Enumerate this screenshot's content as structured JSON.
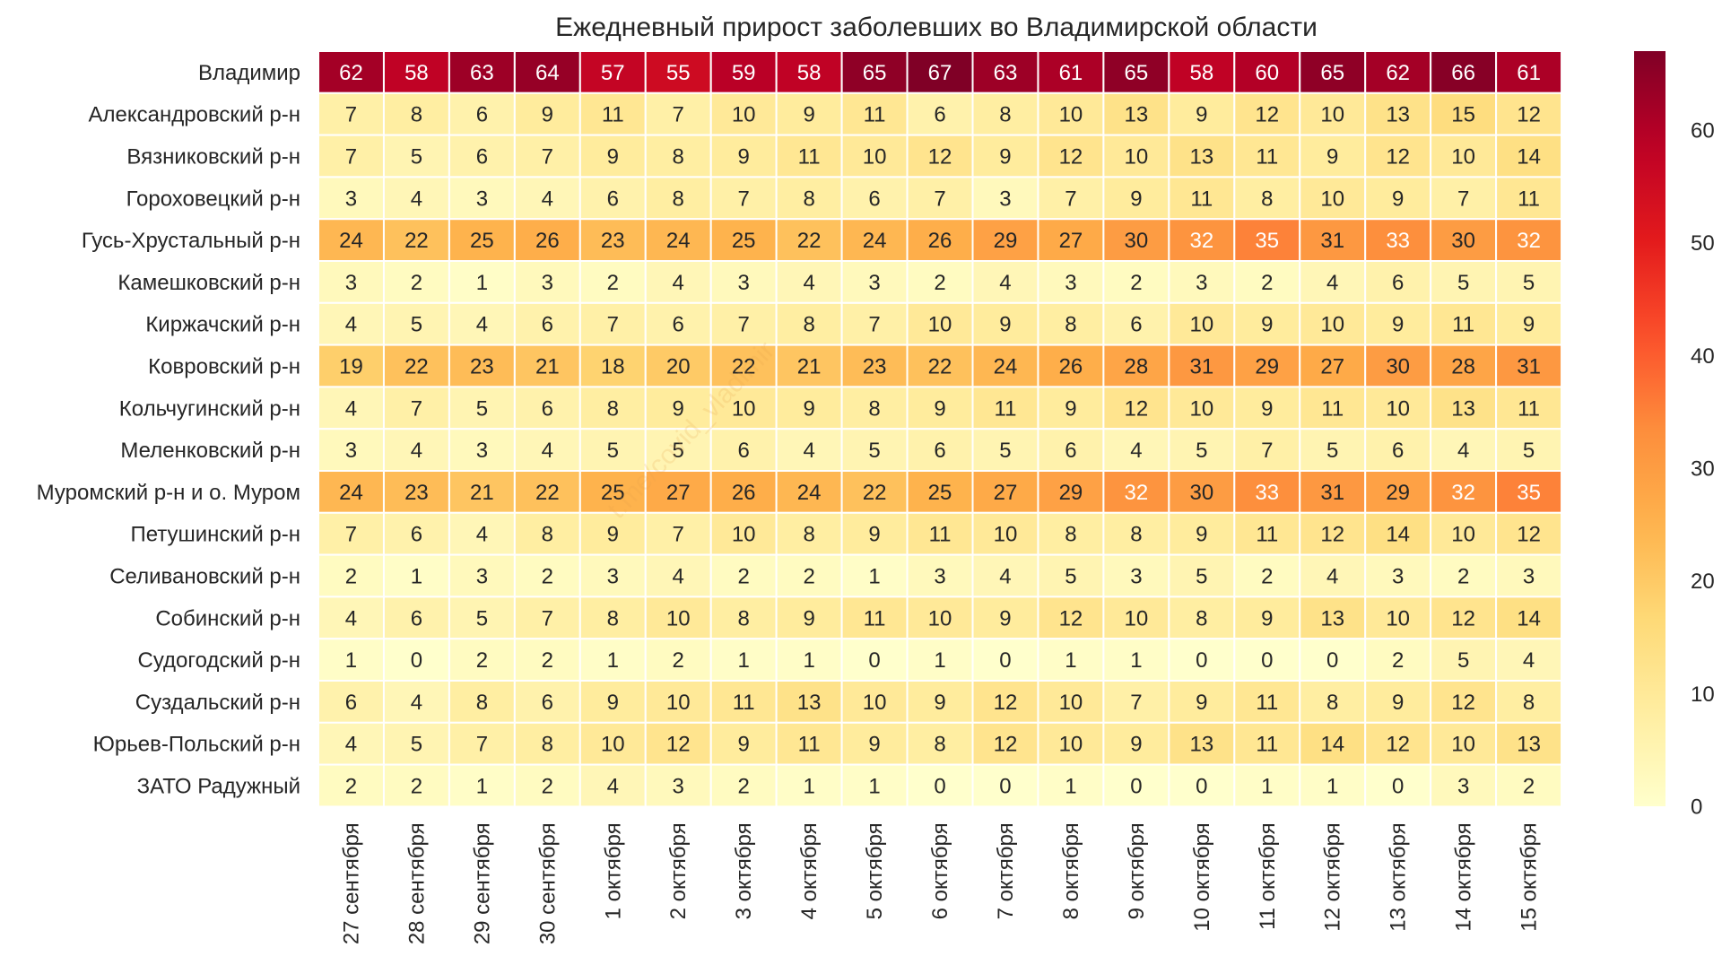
{
  "chart_data": {
    "type": "heatmap",
    "title": "Ежедневный прирост заболевших во Владимирской области",
    "watermark": "t.me/covid_vladimir",
    "colormap": "YlOrRd",
    "vmin": 0,
    "vmax": 67,
    "colorbar_ticks": [
      0,
      10,
      20,
      30,
      40,
      50,
      60
    ],
    "columns": [
      "27 сентября",
      "28 сентября",
      "29 сентября",
      "30 сентября",
      "1 октября",
      "2 октября",
      "3 октября",
      "4 октября",
      "5 октября",
      "6 октября",
      "7 октября",
      "8 октября",
      "9 октября",
      "10 октября",
      "11 октября",
      "12 октября",
      "13 октября",
      "14 октября",
      "15 октября"
    ],
    "rows": [
      "Владимир",
      "Александровский р-н",
      "Вязниковский р-н",
      "Гороховецкий р-н",
      "Гусь-Хрустальный р-н",
      "Камешковский р-н",
      "Киржачский р-н",
      "Ковровский р-н",
      "Кольчугинский р-н",
      "Меленковский р-н",
      "Муромский р-н и о. Муром",
      "Петушинский р-н",
      "Селивановский р-н",
      "Собинский р-н",
      "Судогодский р-н",
      "Суздальский р-н",
      "Юрьев-Польский р-н",
      "ЗАТО Радужный"
    ],
    "values": [
      [
        62,
        58,
        63,
        64,
        57,
        55,
        59,
        58,
        65,
        67,
        63,
        61,
        65,
        58,
        60,
        65,
        62,
        66,
        61
      ],
      [
        7,
        8,
        6,
        9,
        11,
        7,
        10,
        9,
        11,
        6,
        8,
        10,
        13,
        9,
        12,
        10,
        13,
        15,
        12
      ],
      [
        7,
        5,
        6,
        7,
        9,
        8,
        9,
        11,
        10,
        12,
        9,
        12,
        10,
        13,
        11,
        9,
        12,
        10,
        14
      ],
      [
        3,
        4,
        3,
        4,
        6,
        8,
        7,
        8,
        6,
        7,
        3,
        7,
        9,
        11,
        8,
        10,
        9,
        7,
        11
      ],
      [
        24,
        22,
        25,
        26,
        23,
        24,
        25,
        22,
        24,
        26,
        29,
        27,
        30,
        32,
        35,
        31,
        33,
        30,
        32
      ],
      [
        3,
        2,
        1,
        3,
        2,
        4,
        3,
        4,
        3,
        2,
        4,
        3,
        2,
        3,
        2,
        4,
        6,
        5,
        5
      ],
      [
        4,
        5,
        4,
        6,
        7,
        6,
        7,
        8,
        7,
        10,
        9,
        8,
        6,
        10,
        9,
        10,
        9,
        11,
        9
      ],
      [
        19,
        22,
        23,
        21,
        18,
        20,
        22,
        21,
        23,
        22,
        24,
        26,
        28,
        31,
        29,
        27,
        30,
        28,
        31
      ],
      [
        4,
        7,
        5,
        6,
        8,
        9,
        10,
        9,
        8,
        9,
        11,
        9,
        12,
        10,
        9,
        11,
        10,
        13,
        11
      ],
      [
        3,
        4,
        3,
        4,
        5,
        5,
        6,
        4,
        5,
        6,
        5,
        6,
        4,
        5,
        7,
        5,
        6,
        4,
        5
      ],
      [
        24,
        23,
        21,
        22,
        25,
        27,
        26,
        24,
        22,
        25,
        27,
        29,
        32,
        30,
        33,
        31,
        29,
        32,
        35
      ],
      [
        7,
        6,
        4,
        8,
        9,
        7,
        10,
        8,
        9,
        11,
        10,
        8,
        8,
        9,
        11,
        12,
        14,
        10,
        12
      ],
      [
        2,
        1,
        3,
        2,
        3,
        4,
        2,
        2,
        1,
        3,
        4,
        5,
        3,
        5,
        2,
        4,
        3,
        2,
        3
      ],
      [
        4,
        6,
        5,
        7,
        8,
        10,
        8,
        9,
        11,
        10,
        9,
        12,
        10,
        8,
        9,
        13,
        10,
        12,
        14
      ],
      [
        1,
        0,
        2,
        2,
        1,
        2,
        1,
        1,
        0,
        1,
        0,
        1,
        1,
        0,
        0,
        0,
        2,
        5,
        4
      ],
      [
        6,
        4,
        8,
        6,
        9,
        10,
        11,
        13,
        10,
        9,
        12,
        10,
        7,
        9,
        11,
        8,
        9,
        12,
        8
      ],
      [
        4,
        5,
        7,
        8,
        10,
        12,
        9,
        11,
        9,
        8,
        12,
        10,
        9,
        13,
        11,
        14,
        12,
        10,
        13
      ],
      [
        2,
        2,
        1,
        2,
        4,
        3,
        2,
        1,
        1,
        0,
        0,
        1,
        0,
        0,
        1,
        1,
        0,
        3,
        2
      ]
    ]
  }
}
